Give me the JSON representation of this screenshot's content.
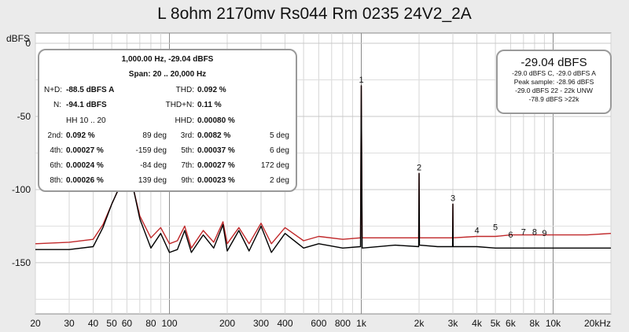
{
  "title": "L 8ohm 2170mv Rs044 Rm 0235 24V2_2A",
  "chart_data": {
    "type": "line",
    "title": "L 8ohm 2170mv Rs044 Rm 0235 24V2_2A",
    "xlabel": "",
    "ylabel": "dBFS",
    "x_scale": "log",
    "xlim": [
      20,
      20000
    ],
    "ylim": [
      -185,
      7
    ],
    "grid": true,
    "x_ticks": [
      {
        "v": 20,
        "label": "20"
      },
      {
        "v": 30,
        "label": "30"
      },
      {
        "v": 40,
        "label": "40"
      },
      {
        "v": 50,
        "label": "50"
      },
      {
        "v": 60,
        "label": "60"
      },
      {
        "v": 80,
        "label": "80"
      },
      {
        "v": 100,
        "label": "100"
      },
      {
        "v": 200,
        "label": "200"
      },
      {
        "v": 300,
        "label": "300"
      },
      {
        "v": 400,
        "label": "400"
      },
      {
        "v": 600,
        "label": "600"
      },
      {
        "v": 800,
        "label": "800"
      },
      {
        "v": 1000,
        "label": "1k"
      },
      {
        "v": 2000,
        "label": "2k"
      },
      {
        "v": 3000,
        "label": "3k"
      },
      {
        "v": 4000,
        "label": "4k"
      },
      {
        "v": 5000,
        "label": "5k"
      },
      {
        "v": 6000,
        "label": "6k"
      },
      {
        "v": 8000,
        "label": "8k"
      },
      {
        "v": 10000,
        "label": "10k"
      },
      {
        "v": 20000,
        "label": "20kHz"
      }
    ],
    "y_ticks": [
      {
        "v": 0,
        "label": "0"
      },
      {
        "v": -50,
        "label": "-50"
      },
      {
        "v": -100,
        "label": "-100"
      },
      {
        "v": -150,
        "label": "-150"
      }
    ],
    "series": [
      {
        "color": "#c0282a",
        "x": [
          20,
          30,
          40,
          45,
          50,
          55,
          60,
          65,
          70,
          80,
          90,
          100,
          110,
          120,
          130,
          150,
          170,
          190,
          200,
          230,
          260,
          300,
          340,
          400,
          500,
          600,
          800,
          990,
          1000,
          1010,
          1500,
          1990,
          2000,
          2010,
          2500,
          2990,
          3000,
          3010,
          4000,
          5000,
          6000,
          7000,
          8000,
          9000,
          10000,
          15000,
          20000
        ],
        "y": [
          -137,
          -136,
          -134,
          -124,
          -110,
          -98,
          -95,
          -100,
          -118,
          -133,
          -126,
          -137,
          -135,
          -125,
          -140,
          -128,
          -136,
          -122,
          -137,
          -126,
          -137,
          -123,
          -137,
          -126,
          -135,
          -132,
          -134,
          -133,
          -29,
          -133,
          -133,
          -133,
          -89,
          -133,
          -133,
          -133,
          -110,
          -133,
          -132,
          -132,
          -131,
          -131,
          -131,
          -131,
          -131,
          -131,
          -130
        ]
      },
      {
        "color": "#000000",
        "x": [
          20,
          30,
          40,
          45,
          50,
          55,
          60,
          65,
          70,
          80,
          90,
          100,
          110,
          120,
          130,
          150,
          170,
          190,
          200,
          230,
          260,
          300,
          340,
          400,
          500,
          600,
          800,
          990,
          1000,
          1010,
          1500,
          1990,
          2000,
          2010,
          2500,
          2990,
          3000,
          3010,
          4000,
          5000,
          6000,
          7000,
          8000,
          9000,
          10000,
          15000,
          20000
        ],
        "y": [
          -141,
          -141,
          -139,
          -126,
          -110,
          -98,
          -94,
          -100,
          -120,
          -140,
          -130,
          -143,
          -141,
          -128,
          -143,
          -131,
          -140,
          -124,
          -142,
          -128,
          -142,
          -125,
          -143,
          -130,
          -140,
          -137,
          -140,
          -139,
          -29,
          -140,
          -138,
          -139,
          -89,
          -138,
          -139,
          -139,
          -110,
          -139,
          -139,
          -140,
          -140,
          -140,
          -140,
          -140,
          -140,
          -140,
          -140
        ]
      }
    ],
    "harmonic_labels": [
      {
        "label": "1",
        "x": 1000,
        "y": -29
      },
      {
        "label": "2",
        "x": 2000,
        "y": -89
      },
      {
        "label": "3",
        "x": 3000,
        "y": -110
      },
      {
        "label": "4",
        "x": 4000,
        "y": -132
      },
      {
        "label": "5",
        "x": 5000,
        "y": -130
      },
      {
        "label": "6",
        "x": 6000,
        "y": -135
      },
      {
        "label": "7",
        "x": 7000,
        "y": -133
      },
      {
        "label": "8",
        "x": 8000,
        "y": -133
      },
      {
        "label": "9",
        "x": 9000,
        "y": -134
      }
    ]
  },
  "panel": {
    "header": "1,000.00 Hz, -29.04 dBFS",
    "span": "Span: 20 .. 20,000 Hz",
    "nd_label": "N+D:",
    "nd_value": "-88.5 dBFS A",
    "thd_label": "THD:",
    "thd_value": "0.092 %",
    "n_label": "N:",
    "n_value": "-94.1 dBFS",
    "thdn_label": "THD+N:",
    "thdn_value": "0.11 %",
    "hh_label": "HH 10 .. 20",
    "hhd_label": "HHD:",
    "hhd_value": "0.00080 %",
    "harmonics": [
      {
        "l1": "2nd:",
        "v1": "0.092 %",
        "p1": "89 deg",
        "l2": "3rd:",
        "v2": "0.0082 %",
        "p2": "5 deg"
      },
      {
        "l1": "4th:",
        "v1": "0.00027 %",
        "p1": "-159 deg",
        "l2": "5th:",
        "v2": "0.00037 %",
        "p2": "6 deg"
      },
      {
        "l1": "6th:",
        "v1": "0.00024 %",
        "p1": "-84 deg",
        "l2": "7th:",
        "v2": "0.00027 %",
        "p2": "172 deg"
      },
      {
        "l1": "8th:",
        "v1": "0.00026 %",
        "p1": "139 deg",
        "l2": "9th:",
        "v2": "0.00023 %",
        "p2": "2 deg"
      }
    ]
  },
  "level": {
    "main": "-29.04 dBFS",
    "line1": "-29.0 dBFS C, -29.0 dBFS A",
    "line2": "Peak sample: -28.96 dBFS",
    "line3": "-29.0 dBFS 22 - 22k UNW",
    "line4": "-78.9 dBFS >22k"
  }
}
